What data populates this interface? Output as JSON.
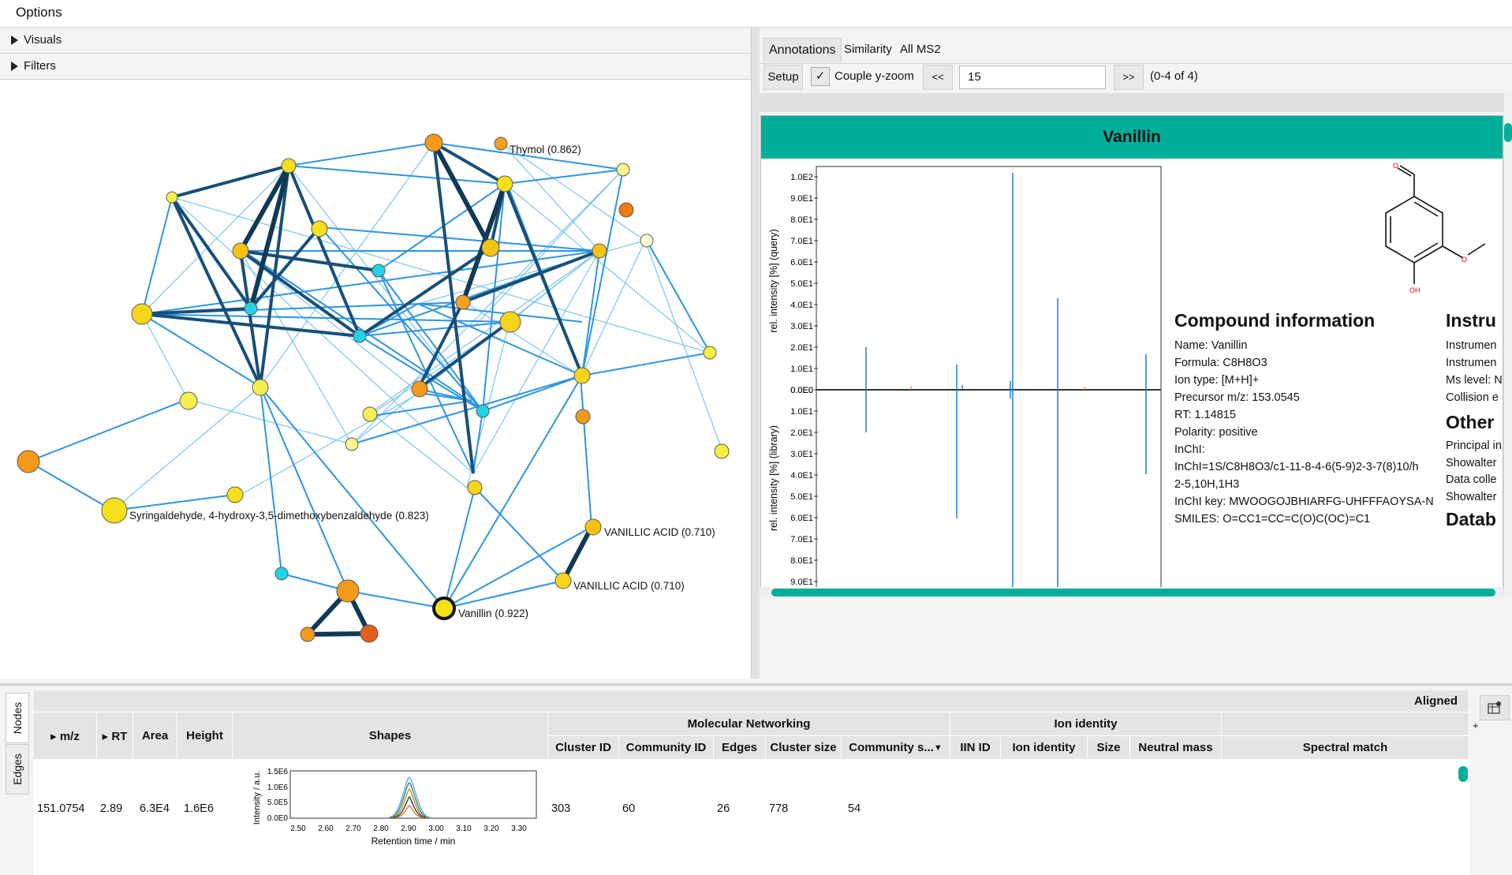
{
  "menu": {
    "options": "Options"
  },
  "left": {
    "accordions": [
      {
        "label": "Visuals"
      },
      {
        "label": "Filters"
      }
    ],
    "network_labels": {
      "thymol": "Thymol (0.862)",
      "syringaldehyde": "Syringaldehyde, 4-hydroxy-3,5-dimethoxybenzaldehyde (0.823)",
      "vanillic1": "VANILLIC ACID (0.710)",
      "vanillic2": "VANILLIC ACID (0.710)",
      "vanillin": "Vanillin (0.922)"
    }
  },
  "right": {
    "tabs": [
      "Annotations",
      "Similarity",
      "All MS2"
    ],
    "toolbar": {
      "setup": "Setup",
      "couple_label": "Couple y-zoom",
      "prev": "<<",
      "next": ">>",
      "input_value": "15",
      "range": "(0-4 of 4)"
    },
    "card": {
      "title": "Vanillin",
      "ylabel_query": "rel. intensity [%] (query)",
      "ylabel_library": "rel. intensity [%] (library)",
      "ticks_top": [
        "1.0E2",
        "9.0E1",
        "8.0E1",
        "7.0E1",
        "6.0E1",
        "5.0E1",
        "4.0E1",
        "3.0E1",
        "2.0E1",
        "1.0E1",
        "0.0E0"
      ],
      "ticks_bottom": [
        "0.0E0",
        "1.0E1",
        "2.0E1",
        "3.0E1",
        "4.0E1",
        "5.0E1",
        "6.0E1",
        "7.0E1",
        "8.0E1",
        "9.0E1"
      ],
      "struct_atoms": {
        "o_top": "O",
        "o_right": "O",
        "oh": "OH"
      },
      "compound_heading": "Compound information",
      "compound_lines": [
        "Name: Vanillin",
        "Formula: C8H8O3",
        "Ion type: [M+H]+",
        "Precursor m/z: 153.0545",
        "RT: 1.14815",
        "Polarity: positive",
        "InChI:",
        "InChI=1S/C8H8O3/c1-11-8-4-6(5-9)2-3-7(8)10/h",
        "2-5,10H,1H3",
        "InChI key: MWOOGOJBHIARFG-UHFFFAOYSA-N",
        "SMILES: O=CC1=CC=C(O)C(OC)=C1"
      ],
      "instrument_heading": "Instru",
      "instrument_lines": [
        "Instrumen",
        "Instrumen",
        "Ms level: N",
        "Collision e"
      ],
      "other_heading": "Other",
      "other_lines": [
        "Principal in",
        "Showalter",
        "Data colle",
        "Showalter"
      ],
      "database_heading": "Datab"
    }
  },
  "bottom": {
    "side_tabs": [
      "Nodes",
      "Edges"
    ],
    "aligned": "Aligned",
    "plus": "+",
    "groups": {
      "mn": "Molecular Networking",
      "ion": "Ion identity"
    },
    "cols": {
      "mz": "▸ m/z",
      "rt": "▸ RT",
      "area": "Area",
      "height": "Height",
      "shapes": "Shapes",
      "cluster_id": "Cluster ID",
      "community_id": "Community ID",
      "edges": "Edges",
      "cluster_size": "Cluster size",
      "community_size": "Community s...",
      "iin_id": "IIN ID",
      "ion_identity": "Ion identity",
      "size": "Size",
      "neutral_mass": "Neutral mass",
      "spectral_match": "Spectral match"
    },
    "row": {
      "mz": "151.0754",
      "rt": "2.89",
      "area": "6.3E4",
      "height": "1.6E6",
      "cluster_id": "303",
      "community_id": "60",
      "edges": "26",
      "cluster_size": "778",
      "community_size": "54"
    },
    "shape_plot": {
      "ylabel": "Intensity / a.u.",
      "xlabel": "Retention time / min",
      "yticks": [
        "1.5E6",
        "1.0E6",
        "5.0E5",
        "0.0E0"
      ],
      "xticks": [
        "2.50",
        "2.60",
        "2.70",
        "2.80",
        "2.90",
        "3.00",
        "3.10",
        "3.20",
        "3.30"
      ]
    }
  },
  "colors": {
    "accent": "#00ae9b",
    "edge_dark": "#0f3a55",
    "edge_blue": "#1e88e5",
    "node_yellow": "#f5e01a",
    "node_orange": "#f39a1a",
    "node_cyan": "#22d3e6"
  }
}
